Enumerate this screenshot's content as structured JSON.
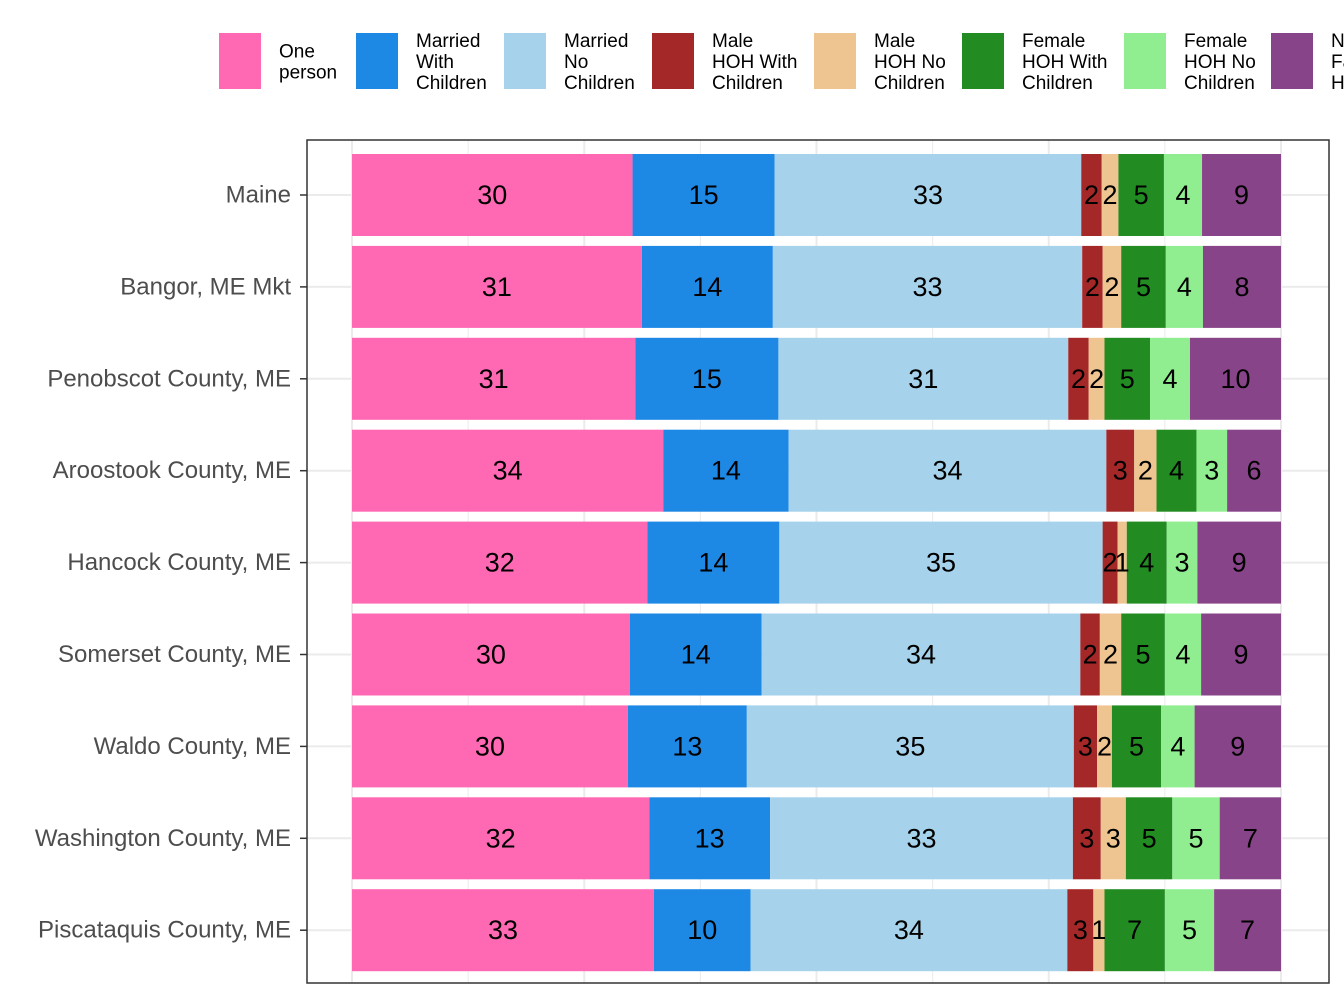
{
  "chart_data": {
    "type": "bar",
    "orientation": "horizontal",
    "stacked": true,
    "title": "",
    "xlabel": "",
    "ylabel": "",
    "xlim": [
      0,
      100
    ],
    "grid": true,
    "legend_position": "top",
    "categories": [
      "Maine",
      "Bangor, ME Mkt",
      "Penobscot County, ME",
      "Aroostook County, ME",
      "Hancock County, ME",
      "Somerset County, ME",
      "Waldo County, ME",
      "Washington County, ME",
      "Piscataquis County, ME"
    ],
    "series": [
      {
        "name": "One person",
        "legend_lines": [
          "One",
          "person"
        ],
        "color": "#FF69B4",
        "values": [
          30.2,
          31.2,
          30.5,
          33.5,
          31.8,
          29.9,
          29.7,
          32.0,
          32.5
        ]
      },
      {
        "name": "Married With Children",
        "legend_lines": [
          "Married",
          "With",
          "Children"
        ],
        "color": "#1E88E5",
        "values": [
          15.3,
          14.1,
          15.4,
          13.5,
          14.2,
          14.2,
          12.8,
          13.0,
          10.4
        ]
      },
      {
        "name": "Married No Children",
        "legend_lines": [
          "Married",
          "No",
          "Children"
        ],
        "color": "#A6D3EB",
        "values": [
          33.0,
          33.3,
          31.2,
          34.2,
          34.8,
          34.3,
          35.2,
          32.6,
          34.1
        ]
      },
      {
        "name": "Male HOH With Children",
        "legend_lines": [
          "Male",
          "HOH With",
          "Children"
        ],
        "color": "#A52828",
        "values": [
          2.2,
          2.2,
          2.2,
          3.0,
          1.6,
          2.1,
          2.5,
          3.0,
          2.8
        ]
      },
      {
        "name": "Male HOH No Children",
        "legend_lines": [
          "Male",
          "HOH No",
          "Children"
        ],
        "color": "#EEC590",
        "values": [
          1.8,
          2.0,
          1.7,
          2.4,
          1.0,
          2.3,
          1.6,
          2.7,
          1.2
        ]
      },
      {
        "name": "Female HOH With Children",
        "legend_lines": [
          "Female",
          "HOH With",
          "Children"
        ],
        "color": "#228B22",
        "values": [
          4.9,
          4.8,
          4.9,
          4.3,
          4.3,
          4.7,
          5.3,
          5.0,
          6.5
        ]
      },
      {
        "name": "Female HOH No Children",
        "legend_lines": [
          "Female",
          "HOH No",
          "Children"
        ],
        "color": "#90EE90",
        "values": [
          4.1,
          4.0,
          4.3,
          3.3,
          3.3,
          3.9,
          3.6,
          5.1,
          5.3
        ]
      },
      {
        "name": "Non-Family HOH",
        "legend_lines": [
          "Non",
          "Family",
          "HOH"
        ],
        "color": "#884488",
        "values": [
          8.5,
          8.4,
          9.8,
          5.8,
          9.0,
          8.6,
          9.3,
          6.6,
          7.2
        ]
      }
    ]
  }
}
